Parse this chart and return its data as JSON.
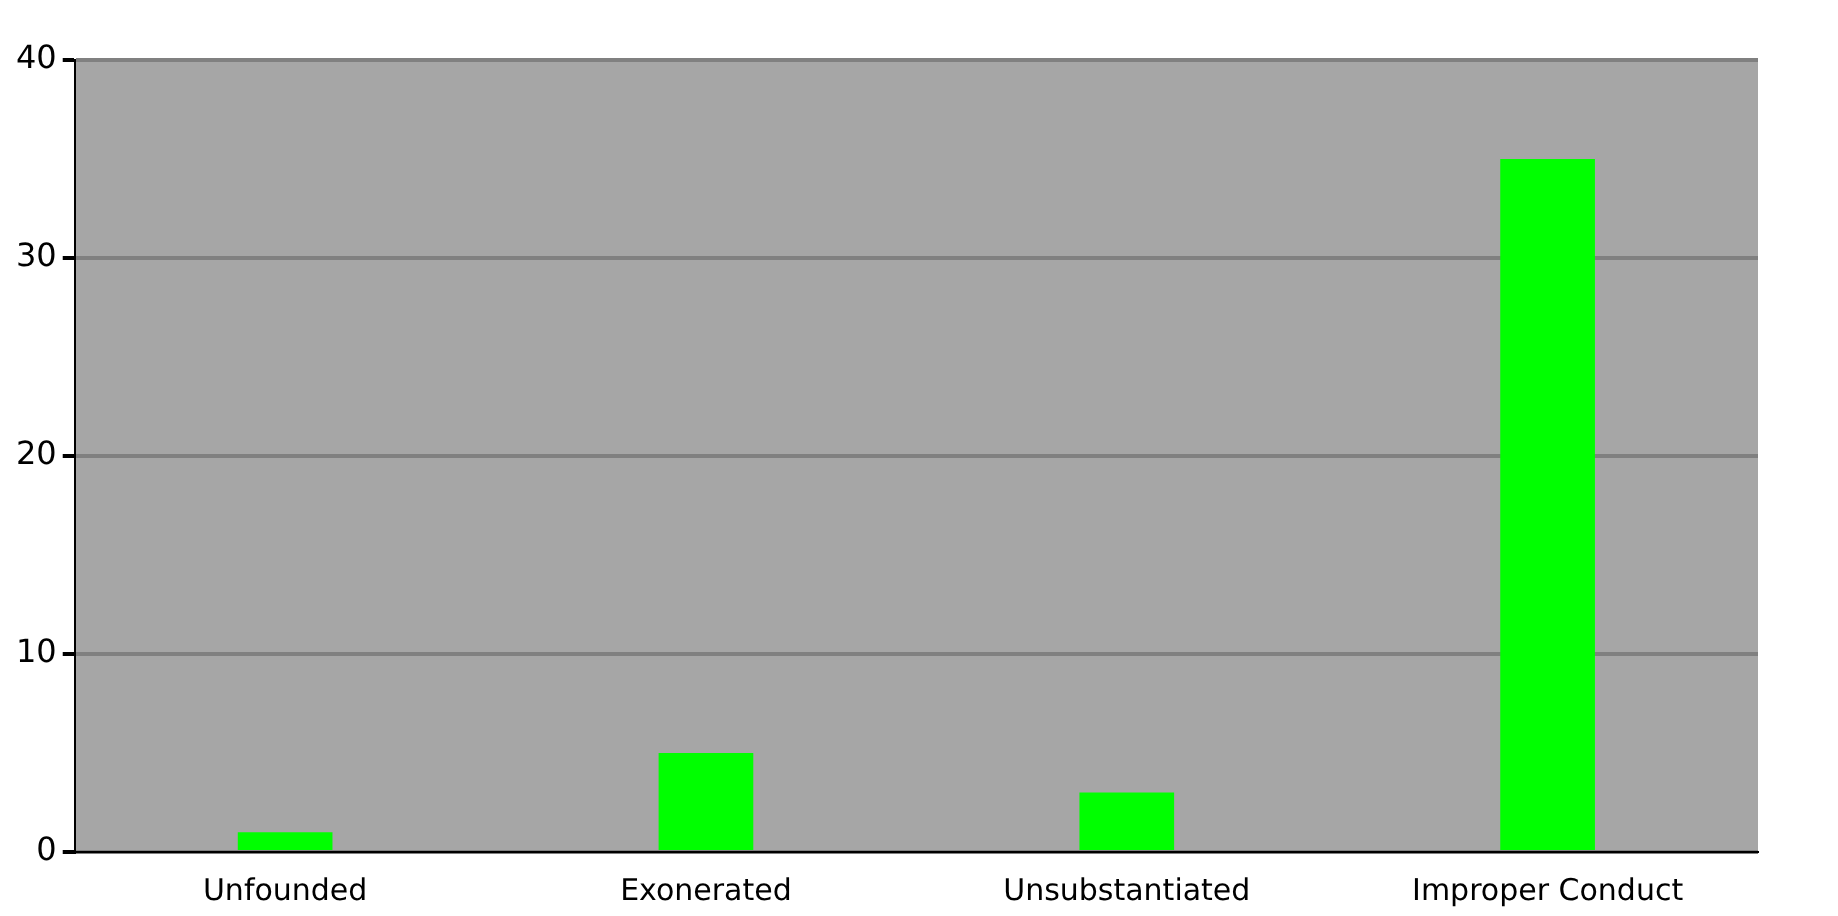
{
  "chart_data": {
    "type": "bar",
    "categories": [
      "Unfounded",
      "Exonerated",
      "Unsubstantiated",
      "Improper Conduct"
    ],
    "series": [
      {
        "color": "#00ff00",
        "values": [
          1,
          5,
          3,
          35
        ]
      }
    ],
    "ylim": [
      0,
      40
    ],
    "yticks": [
      0,
      10,
      20,
      30,
      40
    ],
    "grid": "y",
    "legend": false
  }
}
